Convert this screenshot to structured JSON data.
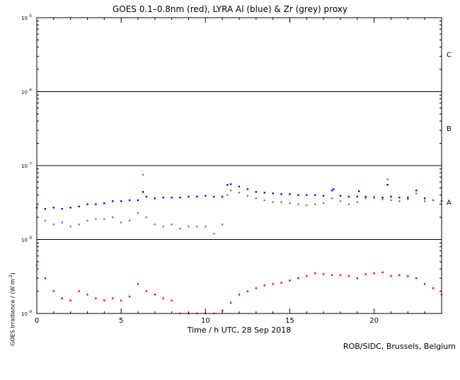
{
  "title": "GOES 0.1–0.8nm (red), LYRA Al (blue) & Zr (grey) proxy",
  "credit": "ROB/SIDC, Brussels, Belgium",
  "chart_data": {
    "type": "scatter",
    "title": "GOES 0.1–0.8nm (red), LYRA Al (blue) & Zr (grey) proxy",
    "xlabel": "Time / h UTC, 28 Sep 2018",
    "ylabel_main": "GOES Irradiance / (W m",
    "ylabel_sup": "-2",
    "ylabel_end": ")",
    "xlim": [
      0,
      24
    ],
    "ylim": [
      1e-09,
      1e-05
    ],
    "yscale": "log",
    "grid": false,
    "x_ticks": [
      {
        "value": 0,
        "label": "0"
      },
      {
        "value": 5,
        "label": "5"
      },
      {
        "value": 10,
        "label": "10"
      },
      {
        "value": 15,
        "label": "15"
      },
      {
        "value": 20,
        "label": "20"
      }
    ],
    "y_ticks": [
      {
        "value": 1e-05,
        "base": "10",
        "exp": "-5"
      },
      {
        "value": 1e-06,
        "base": "10",
        "exp": "-6"
      },
      {
        "value": 1e-07,
        "base": "10",
        "exp": "-7"
      },
      {
        "value": 1e-08,
        "base": "10",
        "exp": "-8"
      },
      {
        "value": 1e-09,
        "base": "10",
        "exp": "-9"
      }
    ],
    "flare_class_lines": [
      1e-06,
      1e-07,
      1e-08
    ],
    "flare_classes": [
      {
        "label": "C",
        "value": 3.2e-06
      },
      {
        "label": "B",
        "value": 3.2e-07
      },
      {
        "label": "A",
        "value": 3.2e-08
      }
    ],
    "series": [
      {
        "color": "#0000ff",
        "x": [
          0,
          0.5,
          1,
          1.5,
          2,
          2.5,
          3,
          3.5,
          4,
          4.5,
          5,
          5.5,
          6,
          6.3,
          6.5,
          7,
          7.5,
          8,
          8.5,
          9,
          9.5,
          10,
          10.5,
          11,
          11.3,
          11.5,
          12,
          12.5,
          13,
          13.5,
          14,
          14.5,
          15,
          15.5,
          16,
          16.5,
          17,
          17.5,
          17.6,
          18,
          18.5,
          19,
          19.1,
          19.5,
          20,
          20.5,
          20.8,
          21,
          21.5,
          22,
          22.5,
          23,
          23.5,
          24
        ],
        "y": [
          2.7e-08,
          2.6e-08,
          2.7e-08,
          2.6e-08,
          2.7e-08,
          2.8e-08,
          3e-08,
          3e-08,
          3.1e-08,
          3.3e-08,
          3.3e-08,
          3.4e-08,
          3.4e-08,
          4.4e-08,
          3.8e-08,
          3.6e-08,
          3.7e-08,
          3.7e-08,
          3.7e-08,
          3.8e-08,
          3.8e-08,
          3.9e-08,
          3.8e-08,
          3.8e-08,
          5.5e-08,
          5.6e-08,
          5.2e-08,
          4.8e-08,
          4.4e-08,
          4.3e-08,
          4.2e-08,
          4.1e-08,
          4.1e-08,
          4e-08,
          4e-08,
          4e-08,
          3.9e-08,
          4.6e-08,
          4.8e-08,
          3.9e-08,
          3.8e-08,
          3.8e-08,
          4.5e-08,
          3.8e-08,
          3.7e-08,
          3.7e-08,
          5.5e-08,
          3.8e-08,
          3.7e-08,
          3.7e-08,
          4.6e-08,
          3.6e-08,
          3.4e-08,
          3.3e-08
        ]
      },
      {
        "color": "#808080",
        "x": [
          0,
          0.5,
          1,
          1.5,
          2,
          2.5,
          3,
          3.5,
          4,
          4.5,
          5,
          5.5,
          6,
          6.3,
          6.5,
          7,
          7.5,
          8,
          8.5,
          9,
          9.5,
          10,
          10.5,
          11,
          11.3,
          11.5,
          12,
          12.5,
          13,
          13.5,
          14,
          14.5,
          15,
          15.5,
          16,
          16.5,
          17,
          17.5,
          18,
          18.5,
          19,
          19.5,
          20,
          20.5,
          20.8,
          21,
          21.5,
          22,
          22.5,
          23,
          23.5,
          24
        ],
        "y": [
          1.7e-08,
          1.8e-08,
          1.6e-08,
          1.7e-08,
          1.5e-08,
          1.6e-08,
          1.8e-08,
          1.9e-08,
          1.9e-08,
          2e-08,
          1.7e-08,
          1.8e-08,
          2.3e-08,
          7.5e-08,
          2e-08,
          1.6e-08,
          1.5e-08,
          1.6e-08,
          1.4e-08,
          1.5e-08,
          1.5e-08,
          1.5e-08,
          1.2e-08,
          1.6e-08,
          4e-08,
          4.6e-08,
          4.3e-08,
          3.9e-08,
          3.6e-08,
          3.4e-08,
          3.2e-08,
          3.2e-08,
          3.1e-08,
          3e-08,
          2.9e-08,
          3e-08,
          3.1e-08,
          3.6e-08,
          3.3e-08,
          3e-08,
          3.2e-08,
          3.6e-08,
          3.8e-08,
          3.5e-08,
          6.5e-08,
          3.4e-08,
          3.3e-08,
          3.5e-08,
          4.2e-08,
          3.3e-08,
          3.4e-08,
          3.2e-08
        ]
      },
      {
        "color": "#ff0000",
        "x": [
          0,
          0.5,
          1,
          1.5,
          2,
          2.5,
          3,
          3.5,
          4,
          4.5,
          5,
          5.5,
          6,
          6.5,
          7,
          7.5,
          8,
          8.5,
          9,
          9.5,
          10,
          10.5,
          11,
          11.5,
          12,
          12.5,
          13,
          13.5,
          14,
          14.5,
          15,
          15.5,
          16,
          16.5,
          17,
          17.5,
          18,
          18.5,
          19,
          19.5,
          20,
          20.5,
          21,
          21.5,
          22,
          22.5,
          23,
          23.5,
          24
        ],
        "y": [
          4.5e-09,
          3e-09,
          2e-09,
          1.6e-09,
          1.5e-09,
          2e-09,
          1.8e-09,
          1.6e-09,
          1.5e-09,
          1.6e-09,
          1.5e-09,
          1.7e-09,
          2.5e-09,
          2e-09,
          1.8e-09,
          1.6e-09,
          1.5e-09,
          1e-09,
          1e-09,
          1e-09,
          1e-09,
          1e-09,
          1.1e-09,
          1.4e-09,
          1.8e-09,
          2e-09,
          2.2e-09,
          2.4e-09,
          2.5e-09,
          2.6e-09,
          2.8e-09,
          3e-09,
          3.2e-09,
          3.5e-09,
          3.4e-09,
          3.3e-09,
          3.3e-09,
          3.2e-09,
          3e-09,
          3.4e-09,
          3.5e-09,
          3.6e-09,
          3.2e-09,
          3.3e-09,
          3.2e-09,
          3e-09,
          2.5e-09,
          2.2e-09,
          1.8e-09
        ]
      }
    ]
  }
}
